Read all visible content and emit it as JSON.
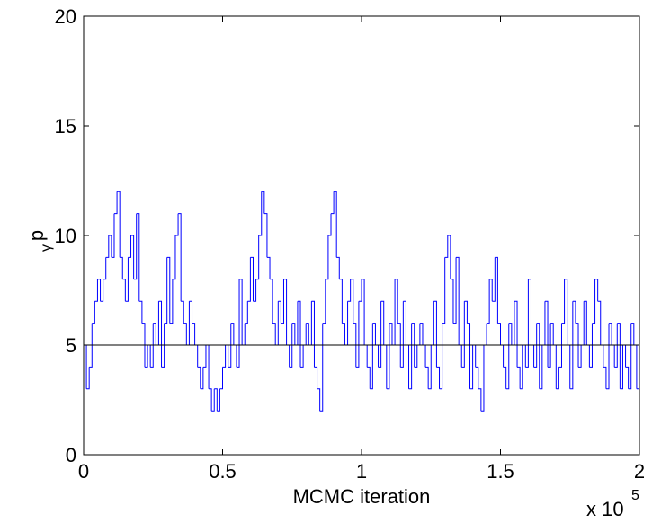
{
  "chart_data": {
    "type": "step",
    "xlabel": "MCMC iteration",
    "ylabel": "p",
    "ylabel_subscript": "γ",
    "x_multiplier": "x 10",
    "x_exponent": "5",
    "xlim": [
      0,
      2
    ],
    "xticks": [
      0,
      0.5,
      1,
      1.5,
      2
    ],
    "ylim": [
      0,
      20
    ],
    "yticks": [
      0,
      5,
      10,
      15,
      20
    ],
    "hline": 5,
    "hline_color": "#000000",
    "series": [
      {
        "color": "#0000ff",
        "x": [
          0,
          0.01,
          0.02,
          0.03,
          0.04,
          0.05,
          0.06,
          0.07,
          0.08,
          0.09,
          0.1,
          0.11,
          0.12,
          0.13,
          0.14,
          0.15,
          0.16,
          0.17,
          0.18,
          0.19,
          0.2,
          0.21,
          0.22,
          0.23,
          0.24,
          0.25,
          0.26,
          0.27,
          0.28,
          0.29,
          0.3,
          0.31,
          0.32,
          0.33,
          0.34,
          0.35,
          0.36,
          0.37,
          0.38,
          0.39,
          0.4,
          0.41,
          0.42,
          0.43,
          0.44,
          0.45,
          0.46,
          0.47,
          0.48,
          0.49,
          0.5,
          0.51,
          0.52,
          0.53,
          0.54,
          0.55,
          0.56,
          0.57,
          0.58,
          0.59,
          0.6,
          0.61,
          0.62,
          0.63,
          0.64,
          0.65,
          0.66,
          0.67,
          0.68,
          0.69,
          0.7,
          0.71,
          0.72,
          0.73,
          0.74,
          0.75,
          0.76,
          0.77,
          0.78,
          0.79,
          0.8,
          0.81,
          0.82,
          0.83,
          0.84,
          0.85,
          0.86,
          0.87,
          0.88,
          0.89,
          0.9,
          0.91,
          0.92,
          0.93,
          0.94,
          0.95,
          0.96,
          0.97,
          0.98,
          0.99,
          1,
          1.01,
          1.02,
          1.03,
          1.04,
          1.05,
          1.06,
          1.07,
          1.08,
          1.09,
          1.1,
          1.11,
          1.12,
          1.13,
          1.14,
          1.15,
          1.16,
          1.17,
          1.18,
          1.19,
          1.2,
          1.21,
          1.22,
          1.23,
          1.24,
          1.25,
          1.26,
          1.27,
          1.28,
          1.29,
          1.3,
          1.31,
          1.32,
          1.33,
          1.34,
          1.35,
          1.36,
          1.37,
          1.38,
          1.39,
          1.4,
          1.41,
          1.42,
          1.43,
          1.44,
          1.45,
          1.46,
          1.47,
          1.48,
          1.49,
          1.5,
          1.51,
          1.52,
          1.53,
          1.54,
          1.55,
          1.56,
          1.57,
          1.58,
          1.59,
          1.6,
          1.61,
          1.62,
          1.63,
          1.64,
          1.65,
          1.66,
          1.67,
          1.68,
          1.69,
          1.7,
          1.71,
          1.72,
          1.73,
          1.74,
          1.75,
          1.76,
          1.77,
          1.78,
          1.79,
          1.8,
          1.81,
          1.82,
          1.83,
          1.84,
          1.85,
          1.86,
          1.87,
          1.88,
          1.89,
          1.9,
          1.91,
          1.92,
          1.93,
          1.94,
          1.95,
          1.96,
          1.97,
          1.98,
          1.99,
          2
        ],
        "values": [
          5,
          3,
          4,
          6,
          7,
          8,
          7,
          8,
          9,
          10,
          9,
          11,
          12,
          9,
          8,
          7,
          9,
          10,
          8,
          11,
          7,
          6,
          4,
          5,
          4,
          6,
          5,
          7,
          4,
          6,
          9,
          6,
          8,
          10,
          11,
          7,
          6,
          5,
          7,
          6,
          5,
          4,
          3,
          4,
          5,
          3,
          2,
          3,
          2,
          3,
          4,
          5,
          4,
          6,
          5,
          4,
          8,
          5,
          6,
          7,
          9,
          7,
          8,
          10,
          12,
          11,
          9,
          8,
          6,
          5,
          7,
          6,
          8,
          5,
          4,
          6,
          5,
          7,
          4,
          5,
          6,
          5,
          7,
          4,
          3,
          2,
          6,
          8,
          10,
          11,
          12,
          9,
          8,
          6,
          5,
          7,
          8,
          6,
          4,
          7,
          8,
          5,
          4,
          3,
          6,
          5,
          4,
          7,
          5,
          3,
          6,
          5,
          8,
          6,
          4,
          7,
          5,
          3,
          6,
          4,
          5,
          6,
          5,
          4,
          3,
          5,
          7,
          4,
          3,
          6,
          9,
          10,
          8,
          6,
          9,
          5,
          4,
          7,
          6,
          3,
          5,
          4,
          3,
          2,
          5,
          6,
          8,
          7,
          9,
          6,
          5,
          4,
          3,
          6,
          5,
          7,
          4,
          3,
          5,
          4,
          8,
          5,
          4,
          6,
          3,
          5,
          7,
          4,
          6,
          5,
          3,
          4,
          6,
          8,
          5,
          3,
          7,
          6,
          4,
          5,
          7,
          5,
          4,
          6,
          8,
          7,
          5,
          4,
          3,
          6,
          5,
          4,
          6,
          3,
          5,
          4,
          3,
          6,
          5,
          3,
          4
        ]
      }
    ]
  }
}
